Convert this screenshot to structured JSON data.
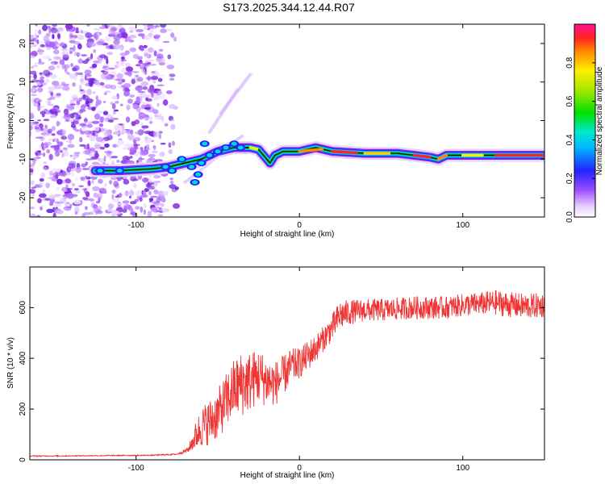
{
  "title": "S173.2025.344.12.44.R07",
  "colors": {
    "signal": "#ef3434",
    "blob": "#8a2be2",
    "frame": "#000000"
  },
  "chart_data": [
    {
      "type": "heatmap",
      "xlabel": "Height of straight line (km)",
      "ylabel": "Frequency (Hz)",
      "xlim": [
        -165,
        150
      ],
      "ylim": [
        -25,
        25
      ],
      "xticks": [
        -100,
        0,
        100
      ],
      "xtick_labels": [
        "-100",
        "0",
        "100"
      ],
      "yticks": [
        20,
        10,
        0,
        -10,
        -20
      ],
      "ytick_labels": [
        "20",
        "10",
        "0",
        "-10",
        "-20"
      ],
      "trace": {
        "x": [
          -125,
          -110,
          -90,
          -80,
          -70,
          -60,
          -50,
          -40,
          -30,
          -25,
          -20,
          -18,
          -15,
          -10,
          0,
          10,
          20,
          40,
          60,
          70,
          80,
          85,
          90,
          100,
          120,
          150
        ],
        "y": [
          -13,
          -13,
          -12.5,
          -12,
          -11,
          -10,
          -8,
          -7,
          -7,
          -7.5,
          -10,
          -11,
          -9,
          -8,
          -8,
          -7,
          -8,
          -8.5,
          -8.5,
          -9,
          -9.5,
          -10,
          -9,
          -9,
          -9,
          -9
        ]
      },
      "colorbar": {
        "label": "Normalized spectral amplitude",
        "range": [
          0,
          1
        ],
        "ticks": [
          0.0,
          0.2,
          0.4,
          0.6,
          0.8
        ],
        "tick_labels": [
          "0.0",
          "0.2",
          "0.4",
          "0.6",
          "0.8"
        ]
      }
    },
    {
      "type": "line",
      "xlabel": "Height of straight line (km)",
      "ylabel": "SNR (10 * v/v)",
      "xlim": [
        -165,
        150
      ],
      "ylim": [
        0,
        760
      ],
      "xticks": [
        -100,
        0,
        100
      ],
      "xtick_labels": [
        "-100",
        "0",
        "100"
      ],
      "yticks": [
        0,
        200,
        400,
        600
      ],
      "ytick_labels": [
        "0",
        "200",
        "400",
        "600"
      ],
      "series": [
        {
          "name": "SNR",
          "x": [
            -165,
            -150,
            -130,
            -110,
            -90,
            -75,
            -68,
            -63,
            -60,
            -55,
            -50,
            -45,
            -40,
            -35,
            -30,
            -25,
            -20,
            -15,
            -10,
            -5,
            0,
            5,
            10,
            15,
            20,
            25,
            30,
            40,
            50,
            60,
            70,
            80,
            90,
            100,
            110,
            120,
            130,
            140,
            150
          ],
          "y": [
            15,
            15,
            16,
            17,
            18,
            22,
            40,
            100,
            130,
            150,
            180,
            230,
            280,
            300,
            310,
            330,
            310,
            300,
            330,
            370,
            380,
            410,
            440,
            480,
            520,
            570,
            580,
            590,
            590,
            595,
            600,
            600,
            600,
            610,
            615,
            620,
            610,
            605,
            610
          ],
          "noise": [
            2,
            2,
            2,
            2,
            2,
            3,
            10,
            60,
            80,
            90,
            100,
            110,
            120,
            130,
            120,
            110,
            100,
            90,
            80,
            70,
            60,
            60,
            55,
            50,
            55,
            60,
            50,
            45,
            45,
            45,
            45,
            45,
            45,
            45,
            45,
            50,
            50,
            50,
            50
          ]
        }
      ]
    }
  ]
}
